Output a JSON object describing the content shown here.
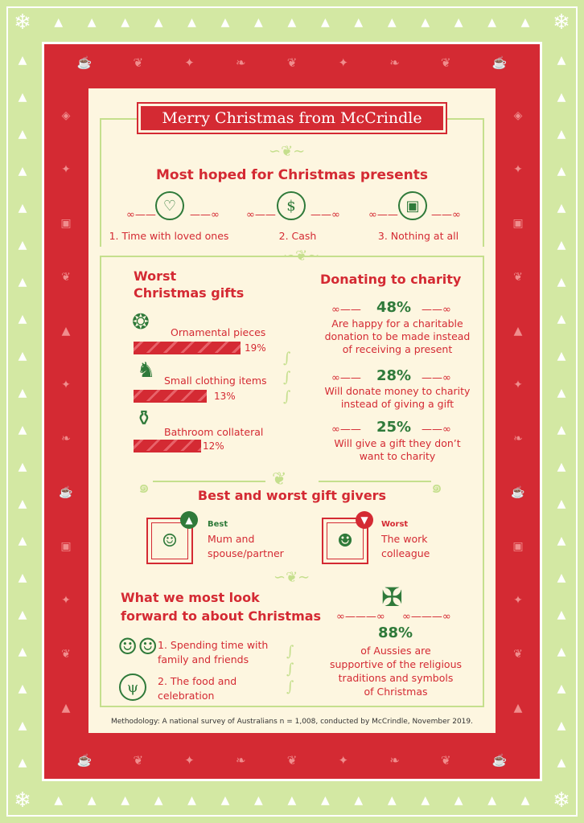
{
  "title": "Merry Christmas from McCrindle",
  "presents": {
    "heading": "Most hoped for Christmas presents",
    "items": [
      {
        "label": "1. Time with loved ones",
        "icon": "family-heart-icon"
      },
      {
        "label": "2. Cash",
        "icon": "cash-icon"
      },
      {
        "label": "3. Nothing at all",
        "icon": "gift-icon"
      }
    ]
  },
  "worst_gifts": {
    "heading_line1": "Worst",
    "heading_line2": "Christmas gifts",
    "items": [
      {
        "label": "Ornamental pieces",
        "pct": "19%",
        "value": 19,
        "icon": "ornament-icon"
      },
      {
        "label": "Small clothing items",
        "pct": "13%",
        "value": 13,
        "icon": "sock-icon"
      },
      {
        "label": "Bathroom collateral",
        "pct": "12%",
        "value": 12,
        "icon": "soap-bottle-icon"
      }
    ]
  },
  "charity": {
    "heading": "Donating to charity",
    "items": [
      {
        "pct": "48%",
        "line1": "Are happy for a charitable",
        "line2": "donation to be made instead",
        "line3": "of receiving a present"
      },
      {
        "pct": "28%",
        "line1": "Will donate money to charity",
        "line2": "instead of giving a gift",
        "line3": ""
      },
      {
        "pct": "25%",
        "line1": "Will give a gift they don’t",
        "line2": "want to charity",
        "line3": ""
      }
    ]
  },
  "givers": {
    "heading": "Best and worst gift givers",
    "best": {
      "tag": "Best",
      "line1": "Mum and",
      "line2": "spouse/partner",
      "icon": "mother-portrait-icon"
    },
    "worst": {
      "tag": "Worst",
      "line1": "The work",
      "line2": "colleague",
      "icon": "colleagues-icon"
    }
  },
  "look_forward": {
    "heading_line1": "What we most look",
    "heading_line2": "forward to about Christmas",
    "items": [
      {
        "line1": "1. Spending time with",
        "line2": "family and friends",
        "icon": "friends-icon"
      },
      {
        "line1": "2. The food and",
        "line2": "celebration",
        "icon": "plate-cutlery-icon"
      }
    ]
  },
  "religion": {
    "pct": "88%",
    "line1": "of Aussies are",
    "line2": "supportive of the religious",
    "line3": "traditions and symbols",
    "line4": "of Christmas",
    "icon": "cross-icon"
  },
  "methodology": "Methodology: A national survey of Australians n = 1,008, conducted by McCrindle, November 2019.",
  "colors": {
    "red": "#d42a33",
    "green": "#2f7a3a",
    "cream": "#fdf6e0",
    "light_green": "#d3e8a3"
  }
}
